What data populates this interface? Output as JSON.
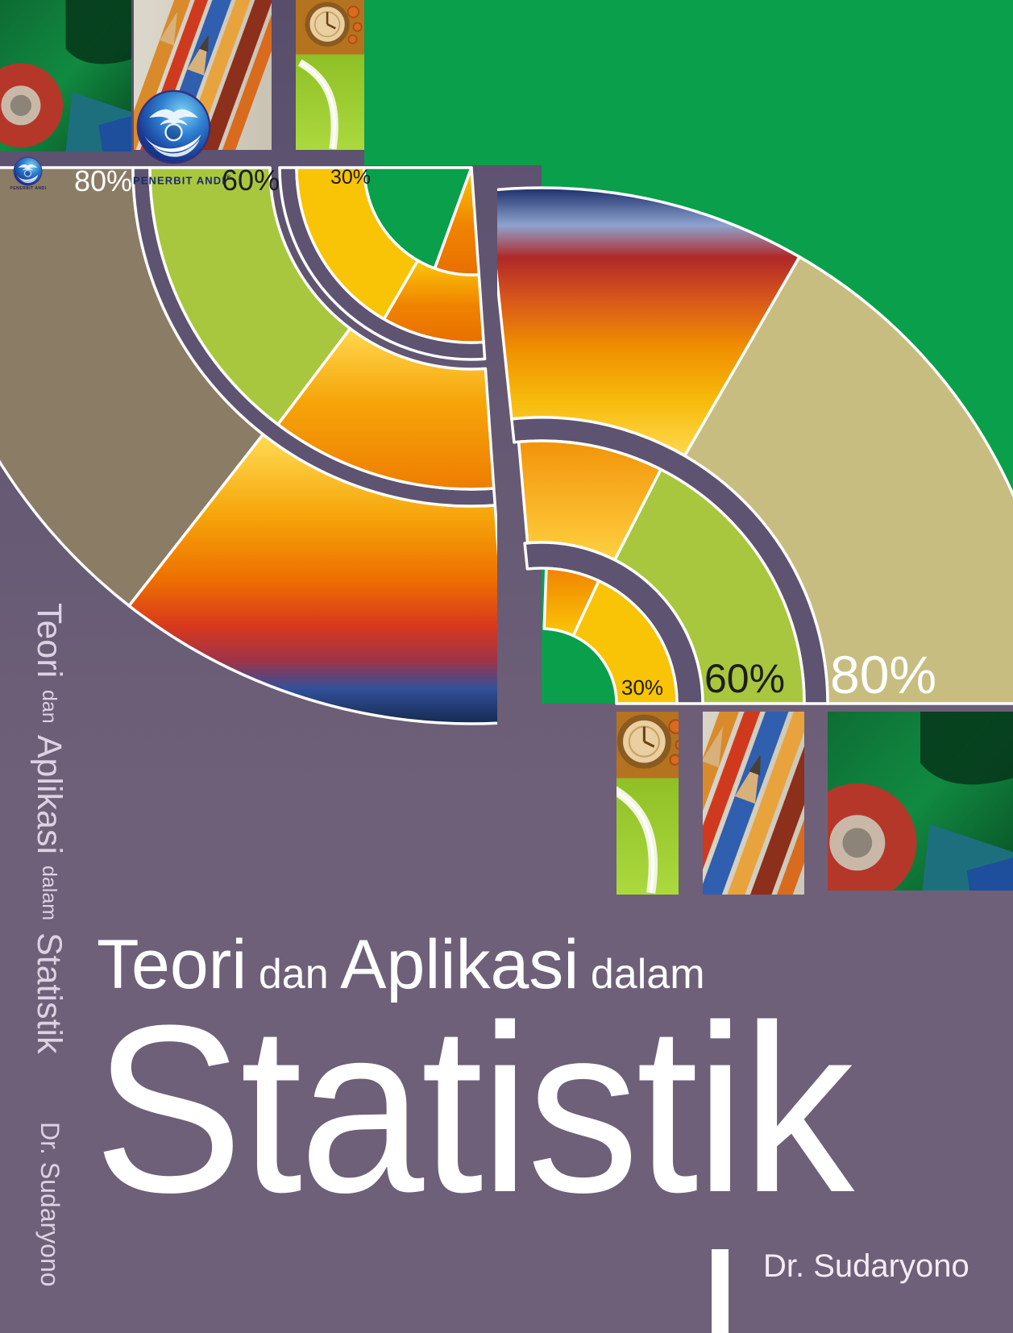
{
  "page_type": "book-cover",
  "colors": {
    "purple_top": "#584e6b",
    "purple_band": "#5e5370",
    "purple_bottom": "#6e6078",
    "green_field": "#0a9f4b",
    "lime_band": "#a8c73e",
    "yellow_band": "#f9c306",
    "taupe_band": "#8b7c66",
    "khaki_band": "#c8bd81",
    "arc_white": "#ffffff",
    "label_dark": "#1d1d1b",
    "publisher_navy": "#1b2a6b",
    "title_white": "#ffffff",
    "spine_text": "#ddd2e4"
  },
  "publisher": {
    "name": "PENERBIT ANDI",
    "reg_mark": "®",
    "logo_letter": "a"
  },
  "top_labels": [
    {
      "text": "80%"
    },
    {
      "text": "60%"
    },
    {
      "text": "30%"
    }
  ],
  "bottom_labels": [
    {
      "text": "30%"
    },
    {
      "text": "60%"
    },
    {
      "text": "80%"
    }
  ],
  "title": {
    "parts": [
      {
        "text": "Teori"
      },
      {
        "text": "dan"
      },
      {
        "text": "Aplikasi"
      },
      {
        "text": "dalam"
      }
    ],
    "main": "Statistik"
  },
  "author": "Dr. Sudaryono",
  "spine": {
    "title_parts": [
      {
        "text": "Teori"
      },
      {
        "text": "dan"
      },
      {
        "text": "Aplikasi"
      },
      {
        "text": "dalam"
      },
      {
        "text": "Statistik"
      }
    ],
    "author": "Dr. Sudaryono"
  }
}
